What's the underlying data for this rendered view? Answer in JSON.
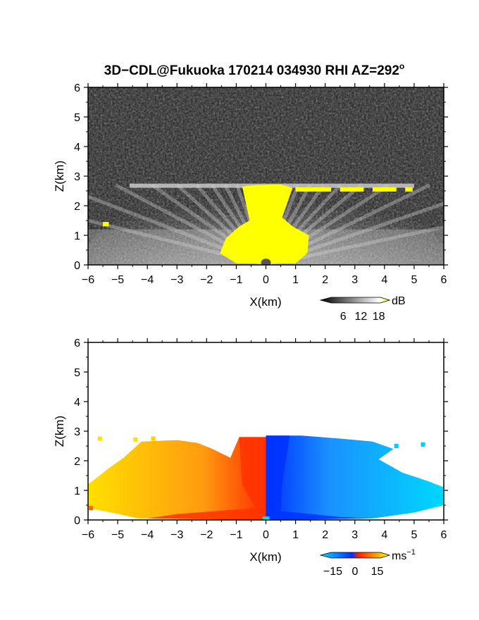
{
  "title": "3D−CDL@Fukuoka 170214 034930 RHI AZ=292",
  "title_superscript": "o",
  "chart_data": [
    {
      "type": "heatmap",
      "quantity": "backscatter",
      "xlabel": "X(km)",
      "ylabel": "Z(km)",
      "xlim": [
        -6,
        6
      ],
      "ylim": [
        0,
        6
      ],
      "x_ticks": [
        "−6",
        "−5",
        "−4",
        "−3",
        "−2",
        "−1",
        "0",
        "1",
        "2",
        "3",
        "4",
        "5",
        "6"
      ],
      "y_ticks": [
        "0",
        "1",
        "2",
        "3",
        "4",
        "5",
        "6"
      ],
      "colorbar": {
        "unit": "dB",
        "ticks": [
          "6",
          "12",
          "18"
        ],
        "tick_values": [
          6,
          12,
          18
        ],
        "range": [
          0,
          20
        ],
        "colors": [
          "#000000",
          "#ffffff",
          "#ffff00"
        ]
      },
      "features": {
        "layer_top_km": 2.7,
        "high_echo_left_edge_km": -0.8,
        "high_echo_right_edge_km": 0.9,
        "blob_top_km": 1.3,
        "colors": {
          "background": "#2a2a2a",
          "high": "#ffff00",
          "beams": "#d8d8d8"
        }
      }
    },
    {
      "type": "heatmap",
      "quantity": "doppler velocity",
      "xlabel": "X(km)",
      "ylabel": "Z(km)",
      "xlim": [
        -6,
        6
      ],
      "ylim": [
        0,
        6
      ],
      "x_ticks": [
        "−6",
        "−5",
        "−4",
        "−3",
        "−2",
        "−1",
        "0",
        "1",
        "2",
        "3",
        "4",
        "5",
        "6"
      ],
      "y_ticks": [
        "0",
        "1",
        "2",
        "3",
        "4",
        "5",
        "6"
      ],
      "colorbar": {
        "unit": "ms",
        "unit_superscript": "−1",
        "ticks": [
          "−15",
          "0",
          "15"
        ],
        "tick_values": [
          -15,
          0,
          15
        ],
        "range": [
          -20,
          20
        ],
        "colors": [
          "#00e0ff",
          "#0030ff",
          "#ff2000",
          "#ffff00"
        ]
      },
      "features": {
        "left_extent_km": -6,
        "right_extent_km": 6,
        "top_km": 2.8,
        "colors": {
          "near_positive": "#ff3300",
          "far_positive": "#ffe000",
          "near_negative": "#0033ff",
          "far_negative": "#00ccff"
        }
      }
    }
  ]
}
